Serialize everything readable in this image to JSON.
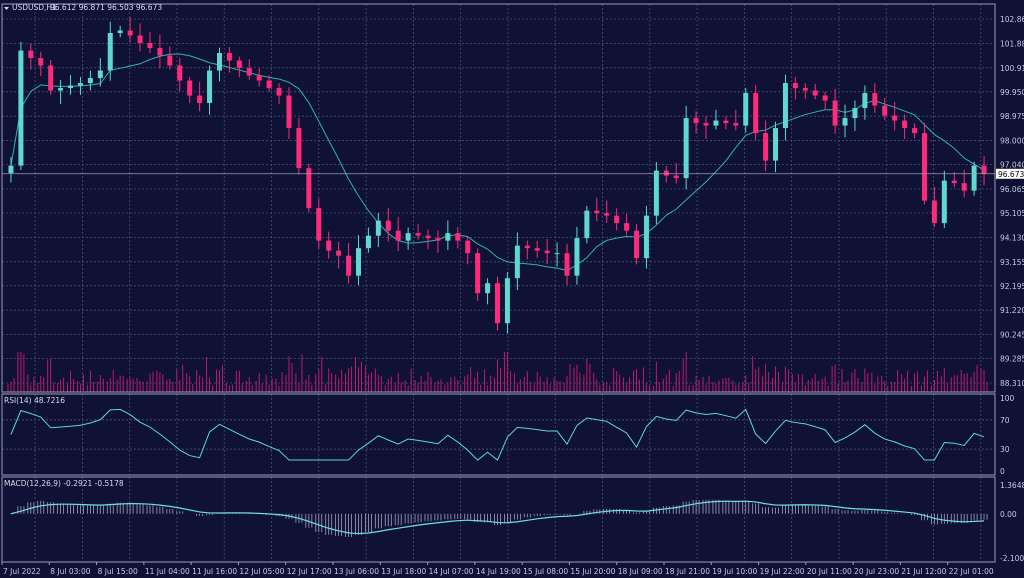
{
  "header": {
    "symbol": "USDUSD,H1",
    "ohlc": "96.612 96.871 96.503 96.673"
  },
  "colors": {
    "background": "#0f1135",
    "grid": "#4a4f72",
    "bull": "#5fd8d0",
    "bear": "#ff2a7a",
    "ma": "#2fb3b0",
    "rsi": "#5fd8d0",
    "macd_signal": "#6fe0e0",
    "macd_hist": "#c8c8d8",
    "volume": "#c01a6a",
    "current_price_line": "#9aa0b8"
  },
  "chart_data": [
    {
      "type": "candlestick",
      "title": "USDUSD,H1",
      "yticks": [
        "102.860",
        "101.885",
        "100.910",
        "99.950",
        "98.975",
        "98.000",
        "97.040",
        "96.065",
        "95.105",
        "94.130",
        "93.155",
        "92.195",
        "91.220",
        "90.245",
        "89.285",
        "88.310"
      ],
      "ylim": [
        88.31,
        102.86
      ],
      "current_price": "96.673",
      "grid": true,
      "x_labels": [
        "7 Jul 2022",
        "8 Jul 03:00",
        "8 Jul 15:00",
        "11 Jul 04:00",
        "11 Jul 16:00",
        "12 Jul 05:00",
        "12 Jul 17:00",
        "13 Jul 06:00",
        "13 Jul 18:00",
        "14 Jul 07:00",
        "14 Jul 19:00",
        "15 Jul 08:00",
        "15 Jul 20:00",
        "18 Jul 09:00",
        "18 Jul 21:00",
        "19 Jul 10:00",
        "19 Jul 22:00",
        "20 Jul 11:00",
        "20 Jul 23:00",
        "21 Jul 12:00",
        "22 Jul 01:00"
      ],
      "closes": [
        97.0,
        101.6,
        101.3,
        101.0,
        100.0,
        100.1,
        100.2,
        100.3,
        100.5,
        100.8,
        102.3,
        102.4,
        102.2,
        101.9,
        101.7,
        101.4,
        101.0,
        100.4,
        99.8,
        99.5,
        100.8,
        101.5,
        101.2,
        100.9,
        100.6,
        100.4,
        100.1,
        99.8,
        98.5,
        96.9,
        95.3,
        94.0,
        93.6,
        93.4,
        92.6,
        93.7,
        94.2,
        94.8,
        94.4,
        94.0,
        94.3,
        94.2,
        94.1,
        94.0,
        94.3,
        94.0,
        93.5,
        91.9,
        92.3,
        90.7,
        92.5,
        93.8,
        93.7,
        93.6,
        93.5,
        93.5,
        92.6,
        94.1,
        95.2,
        95.1,
        95.0,
        94.7,
        94.4,
        93.3,
        95.0,
        96.8,
        96.6,
        96.5,
        98.9,
        98.7,
        98.6,
        98.8,
        98.7,
        98.6,
        99.9,
        98.3,
        97.2,
        98.5,
        100.3,
        100.1,
        100.0,
        99.8,
        99.6,
        98.6,
        98.9,
        99.3,
        99.9,
        99.4,
        99.0,
        98.8,
        98.5,
        98.3,
        95.6,
        94.7,
        96.4,
        96.3,
        96.0,
        97.0,
        96.67
      ],
      "ma_line": true
    },
    {
      "type": "line",
      "title": "RSI(14) 48.7216",
      "yticks": [
        "100",
        "70",
        "30",
        "0"
      ],
      "ylim": [
        0,
        100
      ],
      "levels": [
        70,
        30
      ]
    },
    {
      "type": "bar+line",
      "title": "MACD(12,26,9) -0.2921 -0.5178",
      "yticks": [
        "1.3648",
        "0.00",
        "-2.1005"
      ],
      "ylim": [
        -2.1005,
        1.3648
      ]
    }
  ]
}
